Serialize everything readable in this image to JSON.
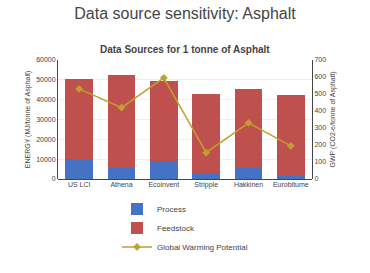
{
  "chart_data": {
    "type": "bar",
    "title": "Data source sensitivity: Asphalt",
    "subtitle": "Data Sources for 1 tonne of Asphalt",
    "categories": [
      "US LCI",
      "Athena",
      "Ecoinvent",
      "Stripple",
      "Hakkinen",
      "Eurobitume"
    ],
    "series": [
      {
        "name": "Process",
        "color": "#4472C4",
        "values": [
          10000,
          5500,
          9000,
          3000,
          6000,
          2000
        ]
      },
      {
        "name": "Feedstock",
        "color": "#C0504D",
        "values": [
          40500,
          47000,
          40500,
          40000,
          39500,
          40500
        ]
      },
      {
        "name": "Global Warming Potential",
        "type": "line",
        "axis": "y2",
        "color": "#BFA030",
        "marker": "diamond",
        "line_style": "solid",
        "values": [
          530,
          420,
          595,
          155,
          330,
          195
        ]
      }
    ],
    "stacked": true,
    "ylabel": "ENERGY (MJ/tonne of Asphalt)",
    "y2label": "GWP (CO2-e/tonne of Asphalt)",
    "ylim": [
      0,
      60000
    ],
    "yticks": [
      0,
      10000,
      20000,
      30000,
      40000,
      50000,
      60000
    ],
    "y2lim": [
      0,
      700
    ],
    "y2ticks": [
      0,
      100,
      200,
      300,
      400,
      500,
      600,
      700
    ],
    "grid": true,
    "legend": "bottom"
  }
}
